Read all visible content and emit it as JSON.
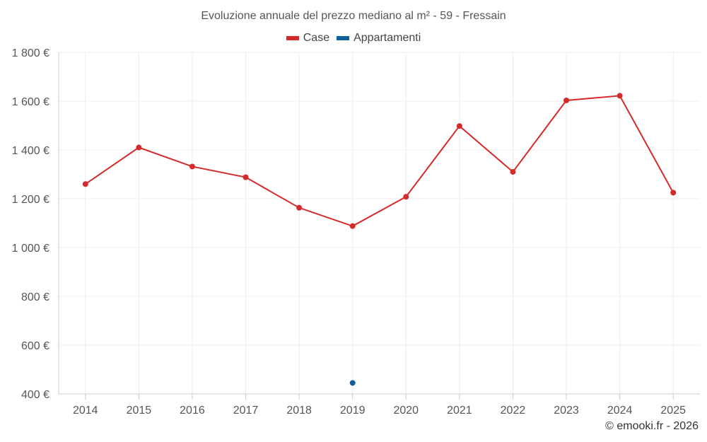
{
  "chart_data": {
    "type": "line",
    "title": "Evoluzione annuale del prezzo mediano al m² - 59 - Fressain",
    "categories": [
      "2014",
      "2015",
      "2016",
      "2017",
      "2018",
      "2019",
      "2020",
      "2021",
      "2022",
      "2023",
      "2024",
      "2025"
    ],
    "series": [
      {
        "name": "Case",
        "color": "#d62a2a",
        "values": [
          1260,
          1410,
          1332,
          1288,
          1163,
          1088,
          1208,
          1498,
          1310,
          1603,
          1622,
          1225
        ]
      },
      {
        "name": "Appartamenti",
        "color": "#0d5f9e",
        "values": [
          null,
          null,
          null,
          null,
          null,
          445,
          null,
          null,
          null,
          null,
          null,
          null
        ]
      }
    ],
    "yticks": [
      "400 €",
      "600 €",
      "800 €",
      "1 000 €",
      "1 200 €",
      "1 400 €",
      "1 600 €",
      "1 800 €"
    ],
    "ylim": [
      400,
      1800
    ],
    "xlabel": "",
    "ylabel": "",
    "grid": true,
    "legend": "top-center"
  },
  "credit": "© emooki.fr - 2026"
}
